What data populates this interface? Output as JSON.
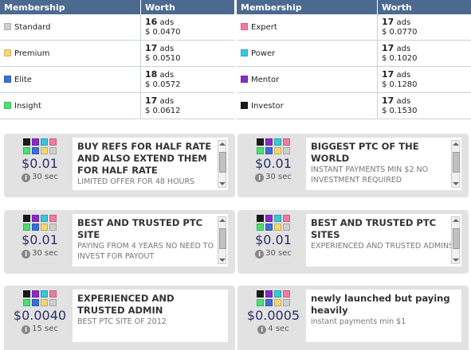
{
  "colors": {
    "standard": "#cfcfcf",
    "premium": "#f0d878",
    "elite": "#3a6fd8",
    "insight": "#48e070",
    "expert": "#f07aa8",
    "power": "#38c8d8",
    "mentor": "#8a2ac8",
    "investor": "#1a1a1a"
  },
  "table_left": {
    "col_membership": "Membership",
    "col_worth": "Worth",
    "rows": [
      {
        "name": "Standard",
        "ads_num": "16",
        "ads_unit": "ads",
        "amount": "$ 0.0470"
      },
      {
        "name": "Premium",
        "ads_num": "17",
        "ads_unit": "ads",
        "amount": "$ 0.0510"
      },
      {
        "name": "Elite",
        "ads_num": "18",
        "ads_unit": "ads",
        "amount": "$ 0.0572"
      },
      {
        "name": "Insight",
        "ads_num": "17",
        "ads_unit": "ads",
        "amount": "$ 0.0612"
      }
    ]
  },
  "table_right": {
    "col_membership": "Membership",
    "col_worth": "Worth",
    "rows": [
      {
        "name": "Expert",
        "ads_num": "17",
        "ads_unit": "ads",
        "amount": "$ 0.0770"
      },
      {
        "name": "Power",
        "ads_num": "17",
        "ads_unit": "ads",
        "amount": "$ 0.1020"
      },
      {
        "name": "Mentor",
        "ads_num": "17",
        "ads_unit": "ads",
        "amount": "$ 0.1280"
      },
      {
        "name": "Investor",
        "ads_num": "17",
        "ads_unit": "ads",
        "amount": "$ 0.1530"
      }
    ]
  },
  "ads": [
    {
      "price": "$0.01",
      "time": "30 sec",
      "title": "BUY REFS FOR HALF RATE AND ALSO EXTEND THEM FOR HALF RATE",
      "desc": "LIMITED OFFER FOR 48 HOURS"
    },
    {
      "price": "$0.01",
      "time": "30 sec",
      "title": "BIGGEST PTC OF THE WORLD",
      "desc": "INSTANT PAYMENTS MIN $2 NO INVESTMENT REQUIRED"
    },
    {
      "price": "$0.01",
      "time": "30 sec",
      "title": "BEST AND TRUSTED PTC SITE",
      "desc": "PAYING FROM 4 YEARS NO NEED TO INVEST FOR PAYOUT"
    },
    {
      "price": "$0.01",
      "time": "30 sec",
      "title": "BEST AND TRUSTED PTC SITES",
      "desc": "EXPERIENCED AND TRUSTED ADMINS"
    },
    {
      "price": "$0.0040",
      "time": "15 sec",
      "title": "EXPERIENCED AND TRUSTED ADMIN",
      "desc": "BEST PTC SITE OF 2012"
    },
    {
      "price": "$0.0005",
      "time": "4 sec",
      "title": "newly launched but paying heavily",
      "desc": "instant payments min $1"
    }
  ],
  "icons": {
    "info": "info-icon",
    "scroll_up": "scroll-up-arrow-icon",
    "scroll_down": "scroll-down-arrow-icon"
  }
}
